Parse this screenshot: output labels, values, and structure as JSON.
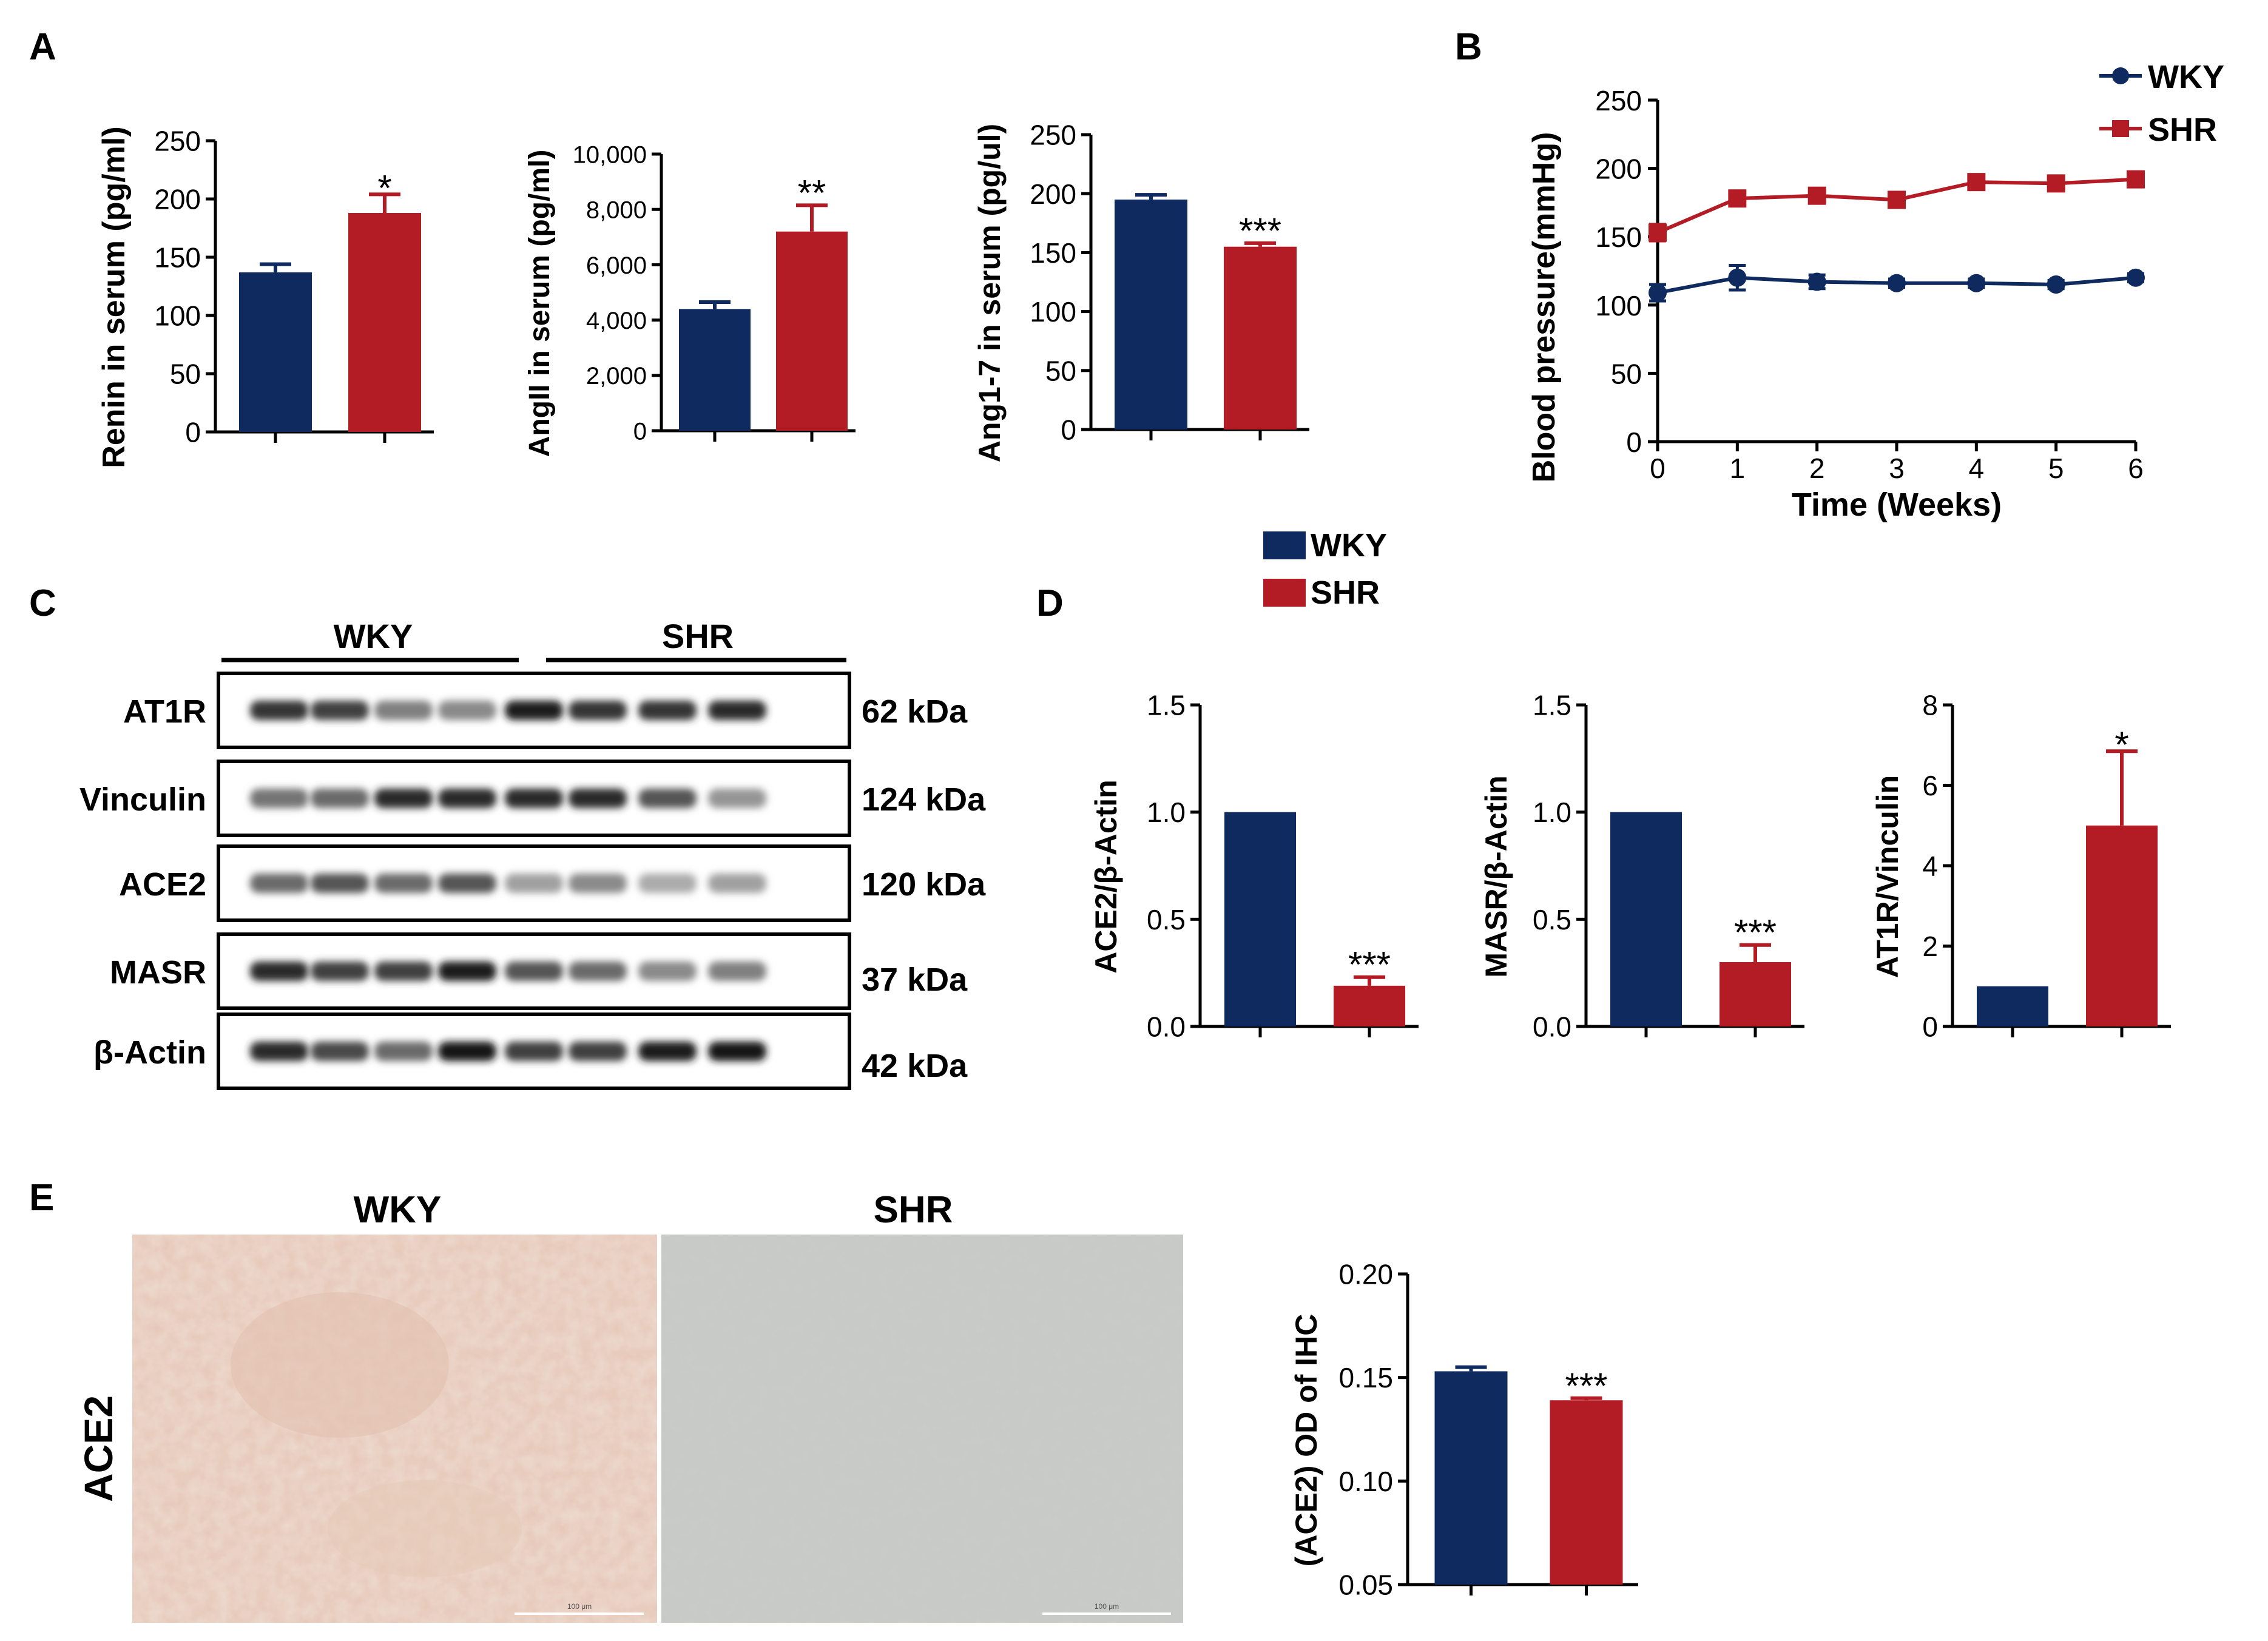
{
  "colors": {
    "wky": "#0f2a5e",
    "shr": "#b31b25",
    "axis": "#000000"
  },
  "panel_labels": [
    "A",
    "B",
    "C",
    "D",
    "E"
  ],
  "top_legend": {
    "items": [
      "WKY",
      "SHR"
    ]
  },
  "western_blot": {
    "groups": [
      "WKY",
      "SHR"
    ],
    "rows": [
      {
        "protein": "AT1R",
        "kda": "62 kDa",
        "intensity": [
          0.85,
          0.8,
          0.5,
          0.45,
          0.95,
          0.85,
          0.85,
          0.9
        ]
      },
      {
        "protein": "Vinculin",
        "kda": "124 kDa",
        "intensity": [
          0.55,
          0.6,
          0.9,
          0.9,
          0.9,
          0.9,
          0.7,
          0.4
        ]
      },
      {
        "protein": "ACE2",
        "kda": "120 kDa",
        "intensity": [
          0.6,
          0.7,
          0.6,
          0.7,
          0.35,
          0.45,
          0.3,
          0.35
        ]
      },
      {
        "protein": "MASR",
        "kda": "37 kDa",
        "intensity": [
          0.9,
          0.8,
          0.8,
          0.95,
          0.7,
          0.6,
          0.45,
          0.5
        ]
      },
      {
        "protein": "β-Actin",
        "kda": "42 kDa",
        "intensity": [
          0.9,
          0.75,
          0.6,
          1.0,
          0.8,
          0.8,
          0.95,
          1.0
        ]
      }
    ]
  },
  "ihc": {
    "row_label": "ACE2",
    "panel_titles": [
      "WKY",
      "SHR"
    ],
    "scale_labels": [
      "100 μm",
      "100 μm"
    ]
  },
  "chart_data": [
    {
      "id": "A1",
      "type": "bar",
      "categories": [
        "WKY",
        "SHR"
      ],
      "values": [
        137,
        188
      ],
      "errors": [
        7,
        16
      ],
      "ylabel": "Renin in serum (pg/ml)",
      "ylim": [
        0,
        250
      ],
      "yticks": [
        0,
        50,
        100,
        150,
        200,
        250
      ],
      "ytick_labels": [
        "0",
        "50",
        "100",
        "150",
        "200",
        "250"
      ],
      "significance": "*"
    },
    {
      "id": "A2",
      "type": "bar",
      "categories": [
        "WKY",
        "SHR"
      ],
      "values": [
        4400,
        7200
      ],
      "errors": [
        250,
        950
      ],
      "ylabel": "AngII in serum (pg/ml)",
      "ylim": [
        0,
        10000
      ],
      "yticks": [
        0,
        2000,
        4000,
        6000,
        8000,
        10000
      ],
      "ytick_labels": [
        "0",
        "2,000",
        "4,000",
        "6,000",
        "8,000",
        "10,000"
      ],
      "significance": "**"
    },
    {
      "id": "A3",
      "type": "bar",
      "categories": [
        "WKY",
        "SHR"
      ],
      "values": [
        195,
        155
      ],
      "errors": [
        4,
        3
      ],
      "ylabel": "Ang1-7 in serum (pg/ul)",
      "ylim": [
        0,
        250
      ],
      "yticks": [
        0,
        50,
        100,
        150,
        200,
        250
      ],
      "ytick_labels": [
        "0",
        "50",
        "100",
        "150",
        "200",
        "250"
      ],
      "significance": "***"
    },
    {
      "id": "B",
      "type": "line",
      "x": [
        0,
        1,
        2,
        3,
        4,
        5,
        6
      ],
      "series": [
        {
          "name": "WKY",
          "values": [
            109,
            120,
            117,
            116,
            116,
            115,
            120
          ],
          "errors": [
            6,
            9,
            5,
            3,
            3,
            3,
            3
          ]
        },
        {
          "name": "SHR",
          "values": [
            153,
            178,
            180,
            177,
            190,
            189,
            192
          ],
          "errors": [
            6,
            5,
            5,
            4,
            5,
            5,
            4
          ]
        }
      ],
      "xlabel": "Time (Weeks)",
      "ylabel": "Blood pressure(mmHg)",
      "xlim": [
        0,
        6
      ],
      "ylim": [
        0,
        250
      ],
      "xticks": [
        0,
        1,
        2,
        3,
        4,
        5,
        6
      ],
      "xtick_labels": [
        "0",
        "1",
        "2",
        "3",
        "4",
        "5",
        "6"
      ],
      "yticks": [
        0,
        50,
        100,
        150,
        200,
        250
      ],
      "ytick_labels": [
        "0",
        "50",
        "100",
        "150",
        "200",
        "250"
      ],
      "legend": [
        "WKY",
        "SHR"
      ]
    },
    {
      "id": "D1",
      "type": "bar",
      "categories": [
        "WKY",
        "SHR"
      ],
      "values": [
        1.0,
        0.19
      ],
      "errors": [
        0,
        0.04
      ],
      "ylabel": "ACE2/β-Actin",
      "ylim": [
        0,
        1.5
      ],
      "yticks": [
        0,
        0.5,
        1.0,
        1.5
      ],
      "ytick_labels": [
        "0.0",
        "0.5",
        "1.0",
        "1.5"
      ],
      "significance": "***"
    },
    {
      "id": "D2",
      "type": "bar",
      "categories": [
        "WKY",
        "SHR"
      ],
      "values": [
        1.0,
        0.3
      ],
      "errors": [
        0,
        0.08
      ],
      "ylabel": "MASR/β-Actin",
      "ylim": [
        0,
        1.5
      ],
      "yticks": [
        0,
        0.5,
        1.0,
        1.5
      ],
      "ytick_labels": [
        "0.0",
        "0.5",
        "1.0",
        "1.5"
      ],
      "significance": "***"
    },
    {
      "id": "D3",
      "type": "bar",
      "categories": [
        "WKY",
        "SHR"
      ],
      "values": [
        1.0,
        5.0
      ],
      "errors": [
        0,
        1.85
      ],
      "ylabel": "AT1R/Vinculin",
      "ylim": [
        0,
        8
      ],
      "yticks": [
        0,
        2,
        4,
        6,
        8
      ],
      "ytick_labels": [
        "0",
        "2",
        "4",
        "6",
        "8"
      ],
      "significance": "*"
    },
    {
      "id": "E",
      "type": "bar",
      "categories": [
        "WKY",
        "SHR"
      ],
      "values": [
        0.153,
        0.139
      ],
      "errors": [
        0.002,
        0.001
      ],
      "ylabel": "(ACE2) OD of IHC",
      "ylim": [
        0.05,
        0.2
      ],
      "yticks": [
        0.05,
        0.1,
        0.15,
        0.2
      ],
      "ytick_labels": [
        "0.05",
        "0.10",
        "0.15",
        "0.20"
      ],
      "significance": "***"
    }
  ]
}
